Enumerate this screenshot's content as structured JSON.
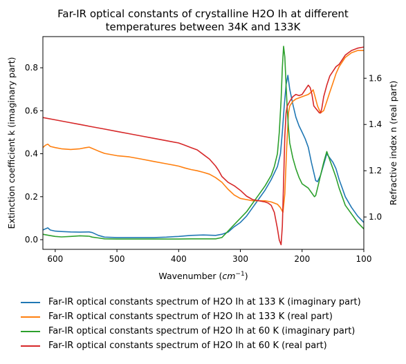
{
  "chart_data": {
    "type": "line",
    "title_lines": [
      "Far-IR optical constants of crystalline H2O Ih at different",
      "temperatures between 34K and 133K"
    ],
    "xlabel": "Wavenumber",
    "xlabel_unit": "cm",
    "xlabel_unit_exp": "−1",
    "ylabel_left": "Extinction coefficient k (imaginary part)",
    "ylabel_right": "Refractive index n (real part)",
    "xlim": [
      620,
      100
    ],
    "ylim_left": [
      -0.045,
      0.945
    ],
    "ylim_right": [
      0.86,
      1.78
    ],
    "x_ticks": [
      600,
      500,
      400,
      300,
      200,
      100
    ],
    "x_tick_labels": [
      "600",
      "500",
      "400",
      "300",
      "200",
      "100"
    ],
    "y_left_ticks": [
      0.0,
      0.2,
      0.4,
      0.6,
      0.8
    ],
    "y_left_tick_labels": [
      "0.0",
      "0.2",
      "0.4",
      "0.6",
      "0.8"
    ],
    "y_right_ticks": [
      1.0,
      1.2,
      1.4,
      1.6
    ],
    "y_right_tick_labels": [
      "1.0",
      "1.2",
      "1.4",
      "1.6"
    ],
    "grid": false,
    "legend_position": "below",
    "series": [
      {
        "name": "Far-IR optical constants spectrum of H2O Ih at 133 K (imaginary part)",
        "color": "#1f77b4",
        "axis": "left",
        "x": [
          620,
          616,
          612,
          608,
          600,
          590,
          575,
          560,
          545,
          540,
          530,
          520,
          500,
          480,
          460,
          440,
          420,
          400,
          380,
          360,
          340,
          330,
          320,
          310,
          300,
          290,
          280,
          270,
          260,
          250,
          245,
          240,
          235,
          232,
          229,
          226,
          223,
          220,
          215,
          210,
          205,
          200,
          195,
          190,
          185,
          180,
          178,
          175,
          170,
          165,
          160,
          155,
          150,
          145,
          140,
          135,
          130,
          120,
          110,
          100
        ],
        "y": [
          0.045,
          0.05,
          0.055,
          0.045,
          0.04,
          0.038,
          0.036,
          0.035,
          0.036,
          0.033,
          0.02,
          0.012,
          0.01,
          0.01,
          0.01,
          0.01,
          0.012,
          0.015,
          0.02,
          0.022,
          0.02,
          0.025,
          0.035,
          0.06,
          0.08,
          0.11,
          0.15,
          0.19,
          0.23,
          0.28,
          0.31,
          0.34,
          0.4,
          0.5,
          0.62,
          0.72,
          0.765,
          0.7,
          0.63,
          0.57,
          0.53,
          0.5,
          0.47,
          0.43,
          0.36,
          0.3,
          0.275,
          0.27,
          0.3,
          0.35,
          0.4,
          0.38,
          0.36,
          0.33,
          0.28,
          0.24,
          0.2,
          0.15,
          0.11,
          0.08
        ]
      },
      {
        "name": "Far-IR optical constants spectrum of H2O Ih at 133 K (real part)",
        "color": "#ff7f0e",
        "axis": "right",
        "x": [
          620,
          616,
          612,
          608,
          600,
          590,
          575,
          560,
          550,
          545,
          530,
          520,
          500,
          480,
          460,
          440,
          420,
          400,
          390,
          380,
          370,
          360,
          350,
          340,
          330,
          320,
          310,
          300,
          290,
          280,
          270,
          260,
          250,
          240,
          235,
          231,
          228,
          225,
          222,
          220,
          215,
          210,
          205,
          200,
          195,
          190,
          185,
          182,
          180,
          175,
          170,
          165,
          160,
          155,
          150,
          145,
          140,
          130,
          120,
          110,
          100
        ],
        "y": [
          1.3,
          1.31,
          1.315,
          1.305,
          1.3,
          1.295,
          1.292,
          1.295,
          1.3,
          1.302,
          1.285,
          1.275,
          1.265,
          1.26,
          1.25,
          1.24,
          1.23,
          1.22,
          1.212,
          1.205,
          1.2,
          1.193,
          1.185,
          1.17,
          1.15,
          1.12,
          1.095,
          1.08,
          1.075,
          1.07,
          1.07,
          1.07,
          1.065,
          1.055,
          1.04,
          1.02,
          1.1,
          1.3,
          1.45,
          1.48,
          1.5,
          1.51,
          1.515,
          1.52,
          1.525,
          1.53,
          1.54,
          1.55,
          1.53,
          1.48,
          1.45,
          1.46,
          1.5,
          1.54,
          1.58,
          1.62,
          1.65,
          1.69,
          1.71,
          1.72,
          1.72
        ]
      },
      {
        "name": "Far-IR optical constants spectrum of H2O Ih at 60 K (imaginary part)",
        "color": "#2ca02c",
        "axis": "left",
        "x": [
          620,
          610,
          600,
          590,
          575,
          560,
          545,
          540,
          530,
          520,
          500,
          480,
          460,
          440,
          420,
          400,
          380,
          360,
          340,
          330,
          320,
          310,
          300,
          290,
          280,
          270,
          260,
          250,
          245,
          240,
          237,
          234,
          232,
          230,
          228,
          226,
          224,
          222,
          220,
          215,
          210,
          205,
          200,
          195,
          190,
          185,
          180,
          178,
          175,
          170,
          165,
          160,
          155,
          150,
          145,
          140,
          135,
          130,
          120,
          110,
          100
        ],
        "y": [
          0.025,
          0.02,
          0.015,
          0.013,
          0.015,
          0.018,
          0.016,
          0.012,
          0.008,
          0.004,
          0.003,
          0.003,
          0.003,
          0.003,
          0.003,
          0.003,
          0.004,
          0.004,
          0.004,
          0.01,
          0.04,
          0.07,
          0.1,
          0.13,
          0.17,
          0.21,
          0.25,
          0.3,
          0.34,
          0.4,
          0.5,
          0.65,
          0.8,
          0.9,
          0.85,
          0.72,
          0.6,
          0.52,
          0.45,
          0.38,
          0.33,
          0.29,
          0.26,
          0.25,
          0.24,
          0.22,
          0.2,
          0.205,
          0.24,
          0.3,
          0.36,
          0.41,
          0.37,
          0.33,
          0.29,
          0.24,
          0.2,
          0.16,
          0.12,
          0.08,
          0.05
        ]
      },
      {
        "name": "Far-IR optical constants spectrum of H2O Ih at 60 K (real part)",
        "color": "#d62728",
        "axis": "right",
        "x": [
          620,
          600,
          580,
          560,
          540,
          520,
          500,
          480,
          460,
          440,
          420,
          400,
          390,
          380,
          370,
          360,
          350,
          345,
          340,
          335,
          330,
          320,
          310,
          300,
          290,
          280,
          270,
          260,
          255,
          250,
          245,
          240,
          237,
          234,
          232,
          230,
          228,
          226,
          224,
          220,
          215,
          210,
          205,
          200,
          195,
          190,
          187,
          184,
          181,
          178,
          175,
          172,
          170,
          168,
          165,
          160,
          155,
          150,
          145,
          140,
          135,
          130,
          120,
          110,
          100
        ],
        "y": [
          1.43,
          1.42,
          1.41,
          1.4,
          1.39,
          1.38,
          1.37,
          1.36,
          1.35,
          1.34,
          1.33,
          1.32,
          1.31,
          1.3,
          1.29,
          1.27,
          1.25,
          1.235,
          1.22,
          1.2,
          1.175,
          1.15,
          1.135,
          1.115,
          1.09,
          1.075,
          1.07,
          1.065,
          1.06,
          1.05,
          1.02,
          0.95,
          0.9,
          0.88,
          0.96,
          1.15,
          1.35,
          1.45,
          1.48,
          1.5,
          1.52,
          1.53,
          1.525,
          1.53,
          1.55,
          1.57,
          1.56,
          1.53,
          1.48,
          1.47,
          1.46,
          1.45,
          1.45,
          1.47,
          1.52,
          1.57,
          1.61,
          1.63,
          1.65,
          1.66,
          1.68,
          1.7,
          1.72,
          1.73,
          1.735
        ]
      }
    ]
  }
}
